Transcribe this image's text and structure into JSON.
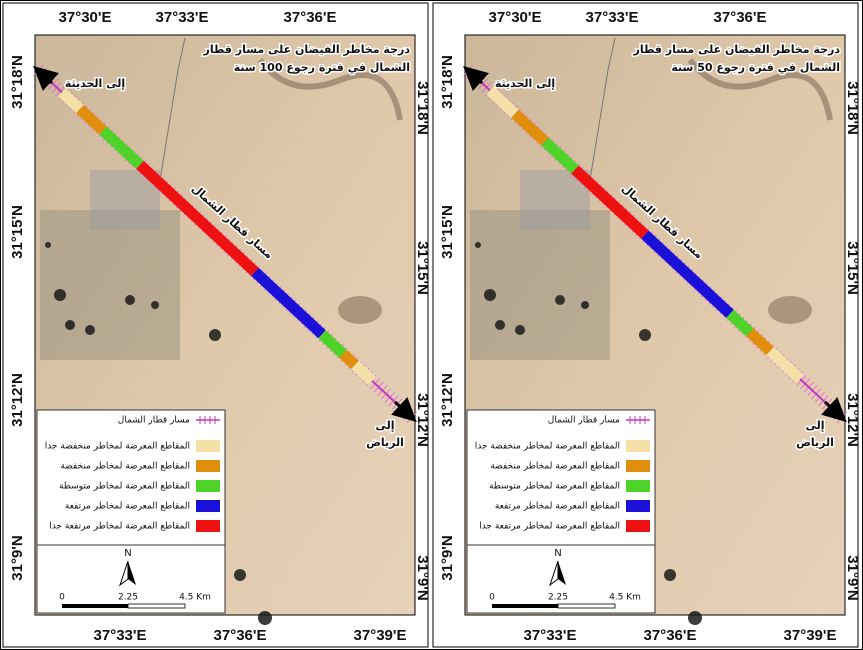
{
  "panels": [
    {
      "title_line1": "درجة مخاطر الفيضان على مسار قطار",
      "title_line2": "الشمال في فترة رجوع 100 سنة",
      "to_north": "إلى الحديثة",
      "to_south_line1": "إلى",
      "to_south_line2": "الرياض",
      "railway_label": "مسار قطار الشمال",
      "top_longitudes": [
        "37°30'E",
        "37°33'E",
        "37°36'E"
      ],
      "bottom_longitudes": [
        "37°33'E",
        "37°36'E",
        "37°39'E"
      ],
      "left_latitudes": [
        "31°18'N",
        "31°15'N",
        "31°12'N",
        "31°9'N"
      ],
      "right_latitudes": [
        "31°18'N",
        "31°15'N",
        "31°12'N",
        "31°9'N"
      ],
      "legend": [
        "مسار قطار الشمال",
        "المقاطع المعرضة لمخاطر منخفضة جدا",
        "المقاطع المعرضة لمخاطر منخفضة",
        "المقاطع المعرضة لمخاطر متوسطة",
        "المقاطع المعرضة لمخاطر مرتفعة",
        "المقاطع المعرضة لمخاطر مرتفعة جدا"
      ],
      "north": "N",
      "scale_labels": [
        "0",
        "2.25",
        "4.5 Km"
      ]
    },
    {
      "title_line1": "درجة مخاطر الفيضان على مسار قطار",
      "title_line2": "الشمال في فترة رجوع 50 سنة",
      "to_north": "إلى الحديثة",
      "to_south_line1": "إلى",
      "to_south_line2": "الرياض",
      "railway_label": "مسار قطار الشمال",
      "top_longitudes": [
        "37°30'E",
        "37°33'E",
        "37°36'E"
      ],
      "bottom_longitudes": [
        "37°33'E",
        "37°36'E",
        "37°39'E"
      ],
      "left_latitudes": [
        "31°18'N",
        "31°15'N",
        "31°12'N",
        "31°9'N"
      ],
      "right_latitudes": [
        "31°18'N",
        "31°15'N",
        "31°12'N",
        "31°9'N"
      ],
      "legend": [
        "مسار قطار الشمال",
        "المقاطع المعرضة لمخاطر منخفضة جدا",
        "المقاطع المعرضة لمخاطر منخفضة",
        "المقاطع المعرضة لمخاطر متوسطة",
        "المقاطع المعرضة لمخاطر مرتفعة",
        "المقاطع المعرضة لمخاطر مرتفعة جدا"
      ],
      "north": "N",
      "scale_labels": [
        "0",
        "2.25",
        "4.5 Km"
      ]
    }
  ]
}
